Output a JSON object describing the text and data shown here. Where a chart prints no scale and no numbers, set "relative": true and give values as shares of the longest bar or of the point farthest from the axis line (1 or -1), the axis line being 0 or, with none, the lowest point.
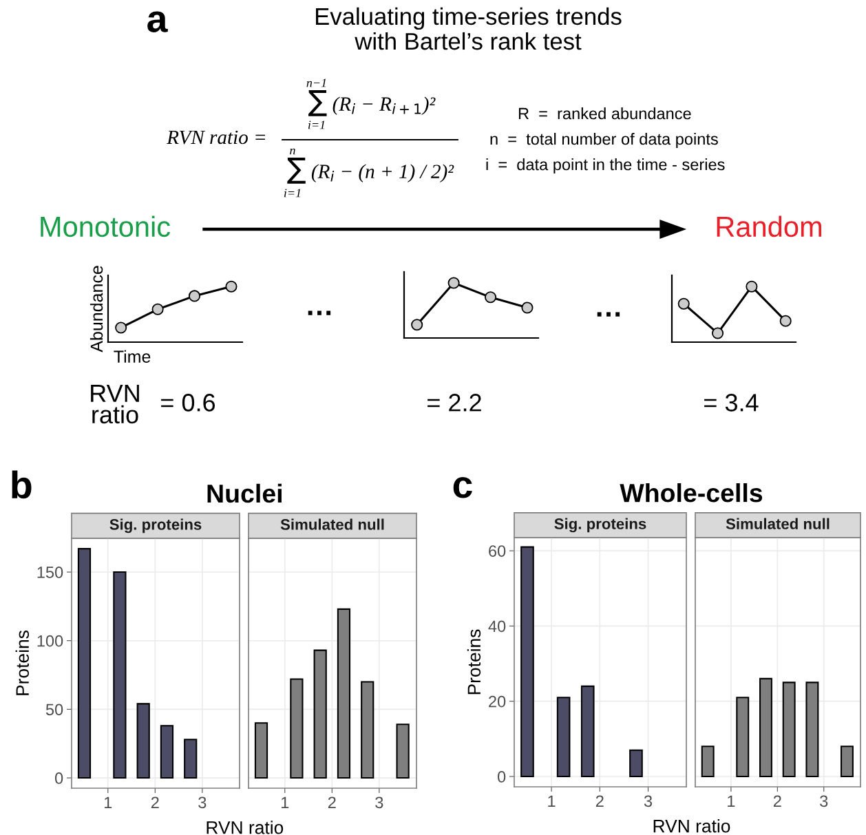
{
  "chart_data": [
    {
      "type": "other",
      "title": "Evaluating time-series trends\nwith Bartel’s rank test",
      "annotations": [
        "a",
        "RVN ratio =",
        "∑ (R$_{i}$ − R$_{i+1}$)²",
        "n−1",
        "i=1",
        "∑ (R$_{i}$ − (n + 1) / 2)²",
        "n",
        "i=1",
        "R  =  ranked abundance",
        "n  =  total number of data points",
        "i  =  data point in the time - series",
        "Monotonic",
        "Random",
        "…",
        "…",
        "RVN\nratio",
        "= 0.6",
        "= 2.2",
        "= 3.4"
      ]
    },
    {
      "type": "line",
      "relative": true,
      "categories": [
        null,
        null,
        null,
        null
      ],
      "values": [
        0.26,
        0.59,
        0.83,
        1
      ],
      "color": "#000000",
      "marker": "circle",
      "xlabel": "Time",
      "ylabel": "Abundance"
    },
    {
      "type": "line",
      "relative": true,
      "categories": [
        null,
        null,
        null,
        null
      ],
      "values": [
        0.24,
        1,
        0.74,
        0.55
      ],
      "color": "#000000",
      "marker": "circle"
    },
    {
      "type": "line",
      "relative": true,
      "categories": [
        null,
        null,
        null,
        null
      ],
      "values": [
        0.69,
        0.16,
        1,
        0.38
      ],
      "color": "#000000",
      "marker": "circle"
    },
    {
      "type": "histogram",
      "title": "Nuclei",
      "subtitle": "Sig. proteins",
      "xlabel": "RVN ratio",
      "ylabel": "Proteins",
      "annotations": [
        "b"
      ],
      "bins": [
        0.375,
        0.625,
        0.875,
        1.125,
        1.375,
        1.625,
        1.875,
        2.125,
        2.375,
        2.625,
        2.875,
        3.125,
        3.375,
        3.625
      ],
      "values": [
        167,
        0,
        0,
        150,
        0,
        54,
        0,
        38,
        0,
        28,
        0,
        0,
        0
      ],
      "color": "#4d4c66",
      "xlim": [
        0.23,
        3.79
      ],
      "ylim": [
        -7.5,
        174.6
      ],
      "xticks": [
        1,
        2,
        3
      ],
      "yticks": [
        0,
        50,
        100,
        150
      ],
      "grid": true
    },
    {
      "type": "histogram",
      "subtitle": "Simulated null",
      "bins": [
        0.375,
        0.625,
        0.875,
        1.125,
        1.375,
        1.625,
        1.875,
        2.125,
        2.375,
        2.625,
        2.875,
        3.125,
        3.375,
        3.625
      ],
      "values": [
        40,
        0,
        0,
        72,
        0,
        93,
        0,
        123,
        0,
        70,
        0,
        0,
        39
      ],
      "color": "#7f7f7f",
      "xlim": [
        0.23,
        3.79
      ],
      "ylim": [
        -7.5,
        174.6
      ],
      "xticks": [
        1,
        2,
        3
      ],
      "yticks": [
        0,
        50,
        100,
        150
      ],
      "grid": true,
      "tick_labels": "x"
    },
    {
      "type": "histogram",
      "title": "Whole-cells",
      "subtitle": "Sig. proteins",
      "xlabel": "RVN ratio",
      "ylabel": "Proteins",
      "annotations": [
        "c"
      ],
      "bins": [
        0.375,
        0.625,
        0.875,
        1.125,
        1.375,
        1.625,
        1.875,
        2.125,
        2.375,
        2.625,
        2.875,
        3.125,
        3.375,
        3.625
      ],
      "values": [
        61,
        0,
        0,
        21,
        0,
        24,
        0,
        0,
        0,
        7,
        0,
        0,
        0
      ],
      "color": "#4d4c66",
      "xlim": [
        0.23,
        3.79
      ],
      "ylim": [
        -2.75,
        63.5
      ],
      "xticks": [
        1,
        2,
        3
      ],
      "yticks": [
        0,
        20,
        40,
        60
      ],
      "grid": true
    },
    {
      "type": "histogram",
      "subtitle": "Simulated null",
      "bins": [
        0.375,
        0.625,
        0.875,
        1.125,
        1.375,
        1.625,
        1.875,
        2.125,
        2.375,
        2.625,
        2.875,
        3.125,
        3.375,
        3.625
      ],
      "values": [
        8,
        0,
        0,
        21,
        0,
        26,
        0,
        25,
        0,
        25,
        0,
        0,
        8
      ],
      "color": "#7f7f7f",
      "xlim": [
        0.23,
        3.79
      ],
      "ylim": [
        -2.75,
        63.5
      ],
      "xticks": [
        1,
        2,
        3
      ],
      "yticks": [
        0,
        20,
        40,
        60
      ],
      "grid": true,
      "tick_labels": "x"
    }
  ]
}
